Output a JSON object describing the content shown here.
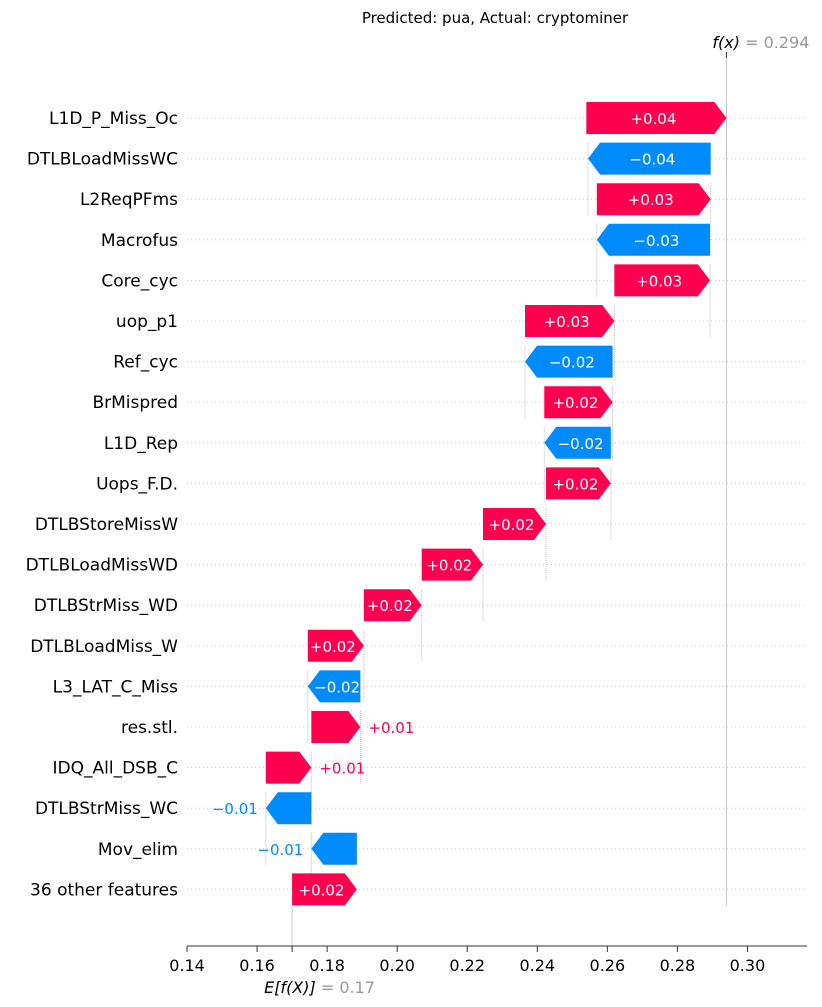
{
  "chart_data": {
    "type": "waterfall",
    "title": "Predicted: pua, Actual: cryptominer",
    "fx_label": "f(x)",
    "fx_value": "0.294",
    "fx": 0.294,
    "ex_label": "E[f(X)]",
    "ex_value": "0.17",
    "ex": 0.17,
    "xlim": [
      0.14,
      0.317
    ],
    "xticks": [
      0.14,
      0.16,
      0.18,
      0.2,
      0.22,
      0.24,
      0.26,
      0.28,
      0.3
    ],
    "xtick_labels": [
      "0.14",
      "0.16",
      "0.18",
      "0.20",
      "0.22",
      "0.24",
      "0.26",
      "0.28",
      "0.30"
    ],
    "colors": {
      "positive": "#ff0051",
      "negative": "#008bfb",
      "muted": "#999999"
    },
    "features": [
      {
        "name": "L1D_P_Miss_Oc",
        "start": 0.254,
        "end": 0.294,
        "label": "+0.04"
      },
      {
        "name": "DTLBLoadMissWC",
        "start": 0.2895,
        "end": 0.2545,
        "label": "−0.04"
      },
      {
        "name": "L2ReqPFms",
        "start": 0.257,
        "end": 0.2895,
        "label": "+0.03"
      },
      {
        "name": "Macrofus",
        "start": 0.2893,
        "end": 0.257,
        "label": "−0.03"
      },
      {
        "name": "Core_cyc",
        "start": 0.262,
        "end": 0.2893,
        "label": "+0.03"
      },
      {
        "name": "uop_p1",
        "start": 0.2365,
        "end": 0.262,
        "label": "+0.03"
      },
      {
        "name": "Ref_cyc",
        "start": 0.2615,
        "end": 0.2365,
        "label": "−0.02"
      },
      {
        "name": "BrMispred",
        "start": 0.242,
        "end": 0.2615,
        "label": "+0.02"
      },
      {
        "name": "L1D_Rep",
        "start": 0.261,
        "end": 0.242,
        "label": "−0.02"
      },
      {
        "name": "Uops_F.D.",
        "start": 0.2425,
        "end": 0.261,
        "label": "+0.02"
      },
      {
        "name": "DTLBStoreMissW",
        "start": 0.2245,
        "end": 0.2425,
        "label": "+0.02"
      },
      {
        "name": "DTLBLoadMissWD",
        "start": 0.207,
        "end": 0.2245,
        "label": "+0.02"
      },
      {
        "name": "DTLBStrMiss_WD",
        "start": 0.1905,
        "end": 0.207,
        "label": "+0.02"
      },
      {
        "name": "DTLBLoadMiss_W",
        "start": 0.1745,
        "end": 0.1905,
        "label": "+0.02"
      },
      {
        "name": "L3_LAT_C_Miss",
        "start": 0.1895,
        "end": 0.1745,
        "label": "−0.02"
      },
      {
        "name": "res.stl.",
        "start": 0.1755,
        "end": 0.1895,
        "label": "+0.01"
      },
      {
        "name": "IDQ_All_DSB_C",
        "start": 0.1625,
        "end": 0.1755,
        "label": "+0.01"
      },
      {
        "name": "DTLBStrMiss_WC",
        "start": 0.1755,
        "end": 0.1625,
        "label": "−0.01"
      },
      {
        "name": "Mov_elim",
        "start": 0.1885,
        "end": 0.1755,
        "label": "−0.01"
      },
      {
        "name": "36 other features",
        "start": 0.17,
        "end": 0.1885,
        "label": "+0.02"
      }
    ]
  }
}
